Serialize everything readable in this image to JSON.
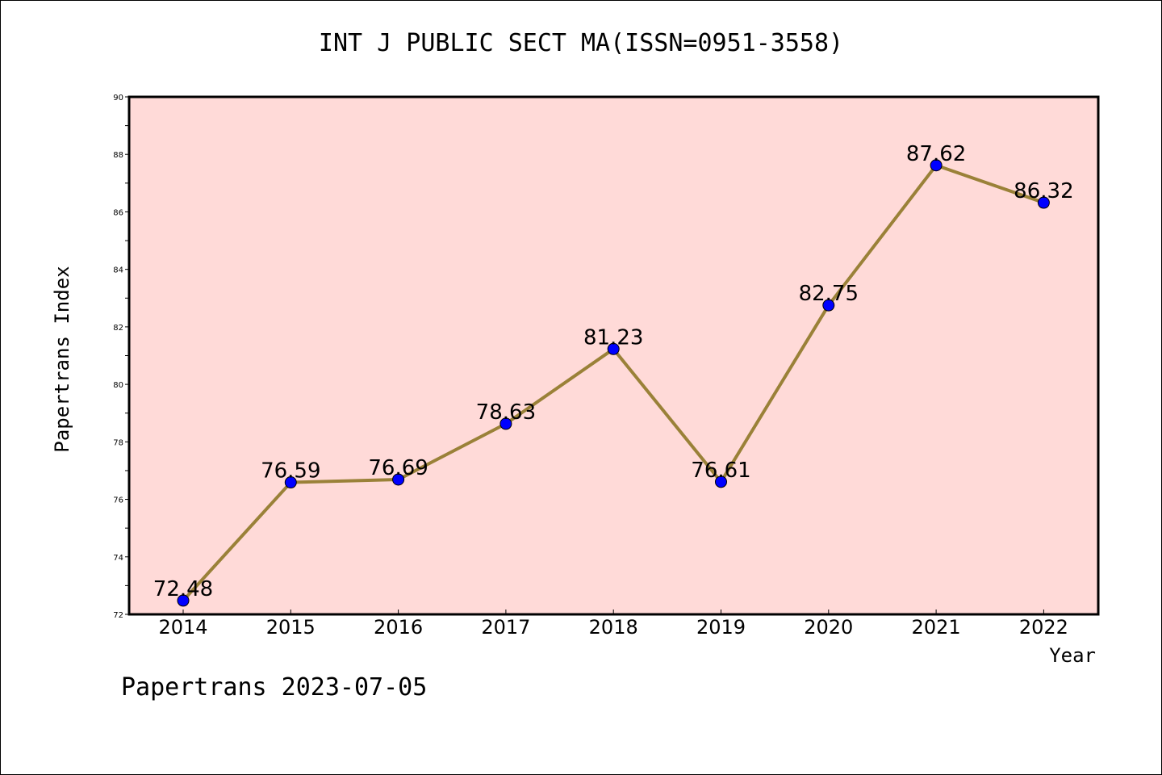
{
  "title": "INT J PUBLIC SECT MA(ISSN=0951-3558)",
  "footer": "Papertrans 2023-07-05",
  "colors": {
    "plot_background": "#FFDAD8",
    "line": "#9A8138",
    "marker": "#0000FF"
  },
  "chart_data": {
    "type": "line",
    "title": "INT J PUBLIC SECT MA(ISSN=0951-3558)",
    "xlabel": "Year",
    "ylabel": "Papertrans Index",
    "categories": [
      "2014",
      "2015",
      "2016",
      "2017",
      "2018",
      "2019",
      "2020",
      "2021",
      "2022"
    ],
    "values": [
      72.48,
      76.59,
      76.69,
      78.63,
      81.23,
      76.61,
      82.75,
      87.62,
      86.32
    ],
    "data_labels": [
      "72.48",
      "76.59",
      "76.69",
      "78.63",
      "81.23",
      "76.61",
      "82.75",
      "87.62",
      "86.32"
    ],
    "ylim": [
      72,
      90
    ],
    "yticks": [
      "72",
      "74",
      "76",
      "78",
      "80",
      "82",
      "84",
      "86",
      "88",
      "90"
    ],
    "grid": false,
    "legend": "none"
  }
}
